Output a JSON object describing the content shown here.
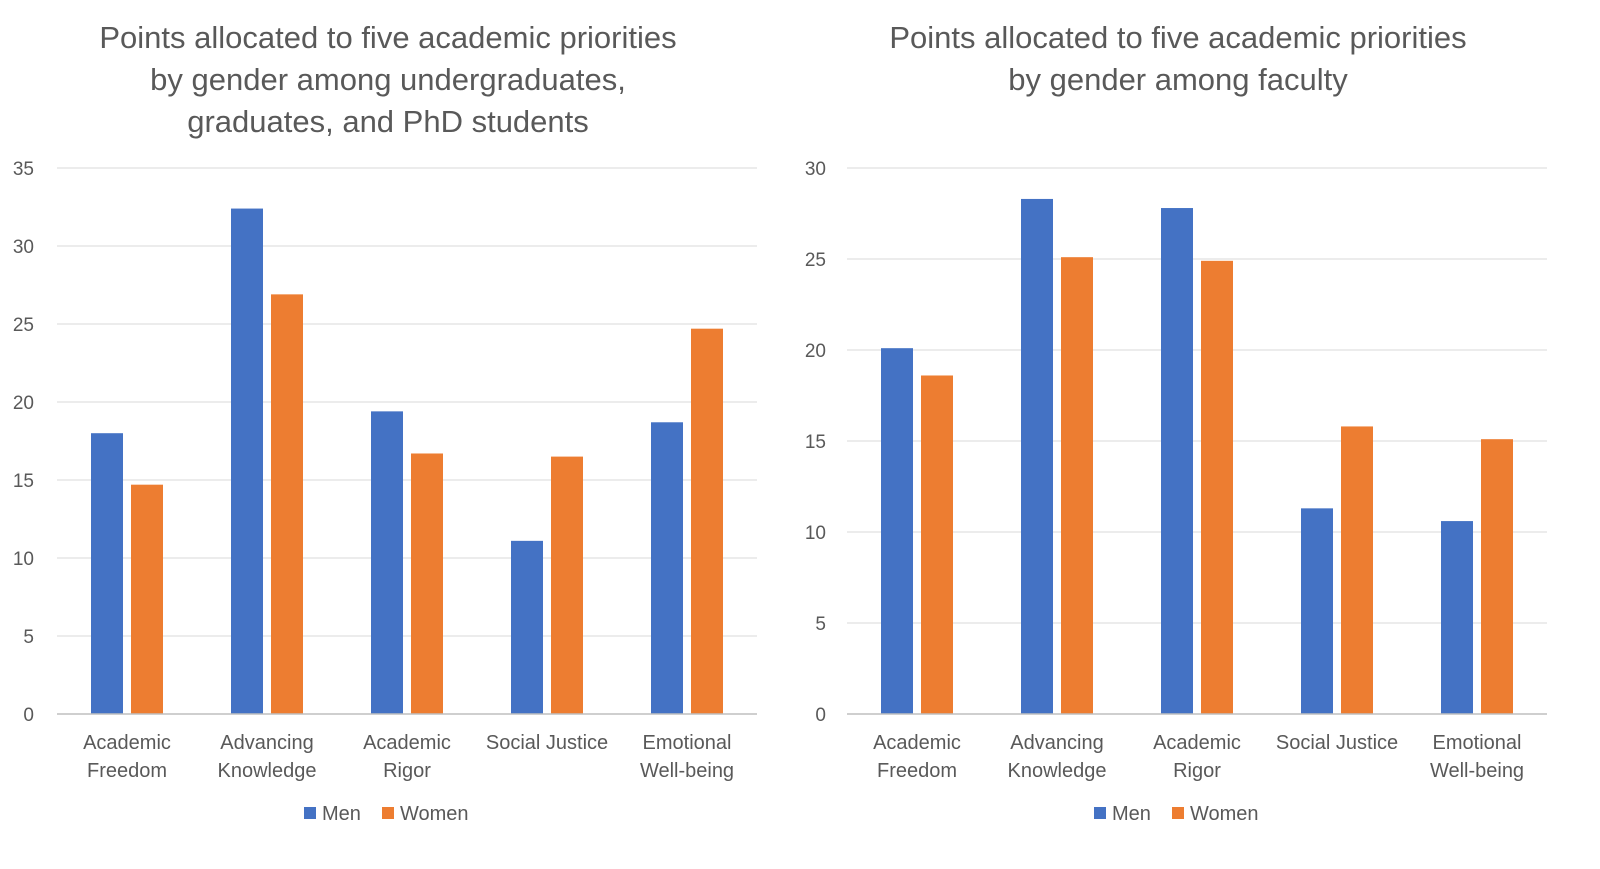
{
  "colors": {
    "men": "#4472c4",
    "women": "#ed7d31"
  },
  "chart_data": [
    {
      "type": "bar",
      "title": [
        "Points allocated to five academic priorities",
        "by gender among undergraduates,",
        "graduates, and PhD students"
      ],
      "categories": [
        [
          "Academic",
          "Freedom"
        ],
        [
          "Advancing",
          "Knowledge"
        ],
        [
          "Academic",
          "Rigor"
        ],
        [
          "Social Justice"
        ],
        [
          "Emotional",
          "Well-being"
        ]
      ],
      "series": [
        {
          "name": "Men",
          "values": [
            18.0,
            32.4,
            19.4,
            11.1,
            18.7
          ]
        },
        {
          "name": "Women",
          "values": [
            14.7,
            26.9,
            16.7,
            16.5,
            24.7
          ]
        }
      ],
      "ylim": [
        0,
        35
      ],
      "yticks": [
        0,
        5,
        10,
        15,
        20,
        25,
        30,
        35
      ],
      "grid": true,
      "legend": "bottom"
    },
    {
      "type": "bar",
      "title": [
        "Points allocated to five academic priorities",
        "by gender among faculty"
      ],
      "categories": [
        [
          "Academic",
          "Freedom"
        ],
        [
          "Advancing",
          "Knowledge"
        ],
        [
          "Academic",
          "Rigor"
        ],
        [
          "Social Justice"
        ],
        [
          "Emotional",
          "Well-being"
        ]
      ],
      "series": [
        {
          "name": "Men",
          "values": [
            20.1,
            28.3,
            27.8,
            11.3,
            10.6
          ]
        },
        {
          "name": "Women",
          "values": [
            18.6,
            25.1,
            24.9,
            15.8,
            15.1
          ]
        }
      ],
      "ylim": [
        0,
        30
      ],
      "yticks": [
        0,
        5,
        10,
        15,
        20,
        25,
        30
      ],
      "grid": true,
      "legend": "bottom"
    }
  ]
}
